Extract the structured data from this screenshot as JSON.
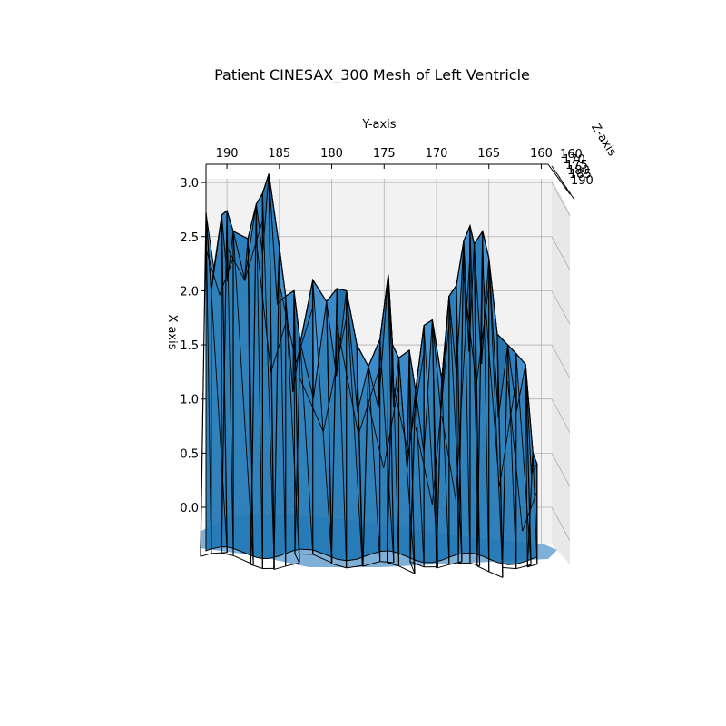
{
  "chart_data": {
    "type": "surface",
    "title": "Patient CINESAX_300 Mesh of Left Ventricle",
    "xlabel": "X-axis",
    "ylabel": "Y-axis",
    "zlabel": "Z-axis",
    "x_ticks": [
      "0.0",
      "0.5",
      "1.0",
      "1.5",
      "2.0",
      "2.5",
      "3.0"
    ],
    "x_tick_values": [
      0.0,
      0.5,
      1.0,
      1.5,
      2.0,
      2.5,
      3.0
    ],
    "y_ticks": [
      "190",
      "185",
      "180",
      "175",
      "170",
      "165",
      "160"
    ],
    "y_tick_values": [
      190,
      185,
      180,
      175,
      170,
      165,
      160
    ],
    "z_ticks": [
      "160",
      "170",
      "175",
      "180",
      "185",
      "190"
    ],
    "z_tick_values": [
      160,
      170,
      175,
      180,
      185,
      190
    ],
    "xlim": [
      -0.3,
      3.1
    ],
    "ylim": [
      192,
      159
    ],
    "grid": true,
    "colors": {
      "face": "#1f77b4",
      "edge": "#000000",
      "pane": "#f2f2f2",
      "grid": "#b0b0b0"
    },
    "profile": {
      "y": [
        192,
        191.5,
        190.5,
        190,
        189.4,
        188,
        187.2,
        186.6,
        186,
        185,
        184.4,
        183.6,
        183,
        181.8,
        180.5,
        179.5,
        178.6,
        177.6,
        176.5,
        175.4,
        174.6,
        174.2,
        173.6,
        172.6,
        172,
        171.2,
        170.4,
        169.5,
        168.8,
        168.1,
        167.4,
        166.8,
        166.4,
        165.6,
        165,
        164.2,
        163.2,
        162.4,
        161.5,
        160.8,
        160.4
      ],
      "x": [
        2.72,
        2.0,
        2.7,
        2.74,
        2.55,
        2.48,
        2.8,
        2.9,
        3.08,
        2.4,
        1.95,
        2.0,
        1.52,
        2.1,
        1.9,
        2.02,
        2.0,
        1.5,
        1.3,
        1.55,
        2.15,
        1.5,
        1.38,
        1.45,
        1.08,
        1.68,
        1.73,
        1.18,
        1.95,
        2.05,
        2.46,
        2.6,
        2.43,
        2.55,
        2.3,
        1.6,
        1.5,
        1.42,
        1.32,
        0.5,
        0.4
      ]
    }
  }
}
